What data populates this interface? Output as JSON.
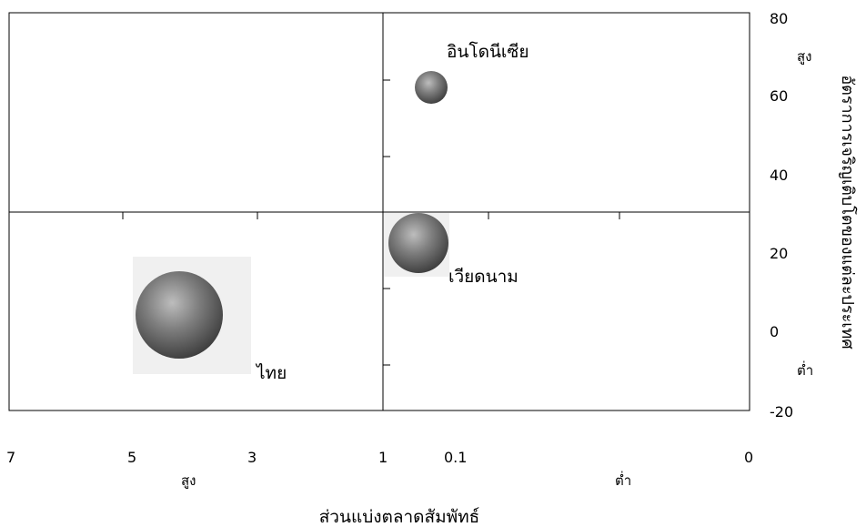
{
  "chart_data": {
    "type": "scatter",
    "subtype": "bubble",
    "title": "",
    "xlabel": "ส่วนแบ่งตลาดสัมพัทธ์",
    "ylabel": "อัตราการเจริญเติบโตของแต่ละประเทศ",
    "x_ticks": [
      "7",
      "5",
      "3",
      "1",
      "0.1",
      "0"
    ],
    "x_hint_high": "สูง",
    "x_hint_low": "ต่ำ",
    "y_ticks": [
      "80",
      "60",
      "40",
      "20",
      "0",
      "-20"
    ],
    "y_hint_high": "สูง",
    "y_hint_low": "ต่ำ",
    "ylim": [
      -20,
      80
    ],
    "x_divider": 1,
    "y_divider": 30,
    "points": [
      {
        "label": "อินโดนีเซีย",
        "x": 0.15,
        "y": 62,
        "size": "small"
      },
      {
        "label": "เวียดนาม",
        "x": 0.17,
        "y": 23,
        "size": "medium"
      },
      {
        "label": "ไทย",
        "x": 3.9,
        "y": 4,
        "size": "large"
      }
    ],
    "grid": false,
    "legend": "none"
  }
}
